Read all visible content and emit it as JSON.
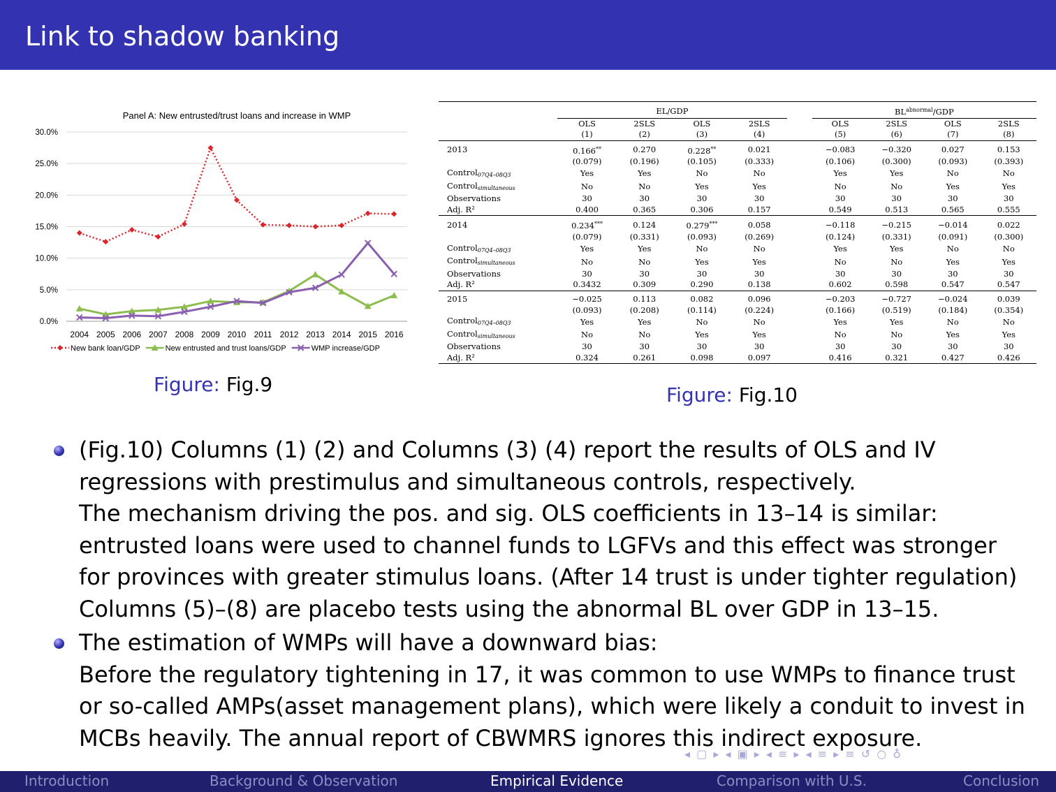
{
  "slide": {
    "title": "Link to shadow banking",
    "fig9_caption_label": "Figure:",
    "fig9_caption_text": "Fig.9",
    "fig10_caption_label": "Figure:",
    "fig10_caption_text": "Fig.10"
  },
  "chart_data": {
    "type": "line",
    "title": "Panel A: New entrusted/trust loans and increase in WMP",
    "categories": [
      "2004",
      "2005",
      "2006",
      "2007",
      "2008",
      "2009",
      "2010",
      "2011",
      "2012",
      "2013",
      "2014",
      "2015",
      "2016"
    ],
    "yticks": [
      "0.0%",
      "5.0%",
      "10.0%",
      "15.0%",
      "20.0%",
      "25.0%",
      "30.0%"
    ],
    "ylim": [
      0,
      30
    ],
    "grid": true,
    "legend_position": "bottom",
    "series": [
      {
        "name": "New bank loan/GDP",
        "color": "#d9262c",
        "style": "dotted",
        "marker": "diamond",
        "values": [
          14.0,
          12.6,
          14.5,
          13.4,
          15.4,
          27.5,
          19.2,
          15.3,
          15.2,
          15.0,
          15.2,
          17.1,
          17.0
        ]
      },
      {
        "name": "New entrusted and trust loans/GDP",
        "color": "#8dbd4f",
        "style": "solid",
        "marker": "triangle",
        "values": [
          2.0,
          1.1,
          1.6,
          1.8,
          2.3,
          3.2,
          3.0,
          3.0,
          4.8,
          7.4,
          4.7,
          2.4,
          4.1
        ]
      },
      {
        "name": "WMP increase/GDP",
        "color": "#8a5fb0",
        "style": "solid",
        "marker": "x",
        "values": [
          0.6,
          0.5,
          0.9,
          0.8,
          1.5,
          2.3,
          3.2,
          2.9,
          4.6,
          5.3,
          7.4,
          12.4,
          7.5
        ]
      }
    ]
  },
  "table": {
    "group1": "EL/GDP",
    "group2_pre": "BL",
    "group2_sup": "abnormal",
    "group2_post": "/GDP",
    "methods": [
      "OLS",
      "2SLS",
      "OLS",
      "2SLS",
      "OLS",
      "2SLS",
      "OLS",
      "2SLS"
    ],
    "colnums": [
      "(1)",
      "(2)",
      "(3)",
      "(4)",
      "(5)",
      "(6)",
      "(7)",
      "(8)"
    ],
    "row_labels": {
      "control1": "Control",
      "control1_sub": "07Q4–08Q3",
      "control2": "Control",
      "control2_sub": "simultaneous",
      "obs": "Observations",
      "adj": "Adj. R²"
    },
    "years": [
      {
        "year": "2013",
        "coef": [
          "0.166**",
          "0.270",
          "0.228**",
          "0.021",
          "−0.083",
          "−0.320",
          "0.027",
          "0.153"
        ],
        "se": [
          "(0.079)",
          "(0.196)",
          "(0.105)",
          "(0.333)",
          "(0.106)",
          "(0.300)",
          "(0.093)",
          "(0.393)"
        ],
        "c1": [
          "Yes",
          "Yes",
          "No",
          "No",
          "Yes",
          "Yes",
          "No",
          "No"
        ],
        "c2": [
          "No",
          "No",
          "Yes",
          "Yes",
          "No",
          "No",
          "Yes",
          "Yes"
        ],
        "obs": [
          "30",
          "30",
          "30",
          "30",
          "30",
          "30",
          "30",
          "30"
        ],
        "adj": [
          "0.400",
          "0.365",
          "0.306",
          "0.157",
          "0.549",
          "0.513",
          "0.565",
          "0.555"
        ]
      },
      {
        "year": "2014",
        "coef": [
          "0.234***",
          "0.124",
          "0.279***",
          "0.058",
          "−0.118",
          "−0.215",
          "−0.014",
          "0.022"
        ],
        "se": [
          "(0.079)",
          "(0.331)",
          "(0.093)",
          "(0.269)",
          "(0.124)",
          "(0.331)",
          "(0.091)",
          "(0.300)"
        ],
        "c1": [
          "Yes",
          "Yes",
          "No",
          "No",
          "Yes",
          "Yes",
          "No",
          "No"
        ],
        "c2": [
          "No",
          "No",
          "Yes",
          "Yes",
          "No",
          "No",
          "Yes",
          "Yes"
        ],
        "obs": [
          "30",
          "30",
          "30",
          "30",
          "30",
          "30",
          "30",
          "30"
        ],
        "adj": [
          "0.3432",
          "0.309",
          "0.290",
          "0.138",
          "0.602",
          "0.598",
          "0.547",
          "0.547"
        ]
      },
      {
        "year": "2015",
        "coef": [
          "−0.025",
          "0.113",
          "0.082",
          "0.096",
          "−0.203",
          "−0.727",
          "−0.024",
          "0.039"
        ],
        "se": [
          "(0.093)",
          "(0.208)",
          "(0.114)",
          "(0.224)",
          "(0.166)",
          "(0.519)",
          "(0.184)",
          "(0.354)"
        ],
        "c1": [
          "Yes",
          "Yes",
          "No",
          "No",
          "Yes",
          "Yes",
          "No",
          "No"
        ],
        "c2": [
          "No",
          "No",
          "Yes",
          "Yes",
          "No",
          "No",
          "Yes",
          "Yes"
        ],
        "obs": [
          "30",
          "30",
          "30",
          "30",
          "30",
          "30",
          "30",
          "30"
        ],
        "adj": [
          "0.324",
          "0.261",
          "0.098",
          "0.097",
          "0.416",
          "0.321",
          "0.427",
          "0.426"
        ]
      }
    ]
  },
  "bullets": [
    {
      "lines": [
        "(Fig.10) Columns (1) (2) and Columns (3) (4) report the results of OLS and IV regressions with prestimulus and simultaneous controls, respectively.",
        "The mechanism driving the pos. and sig. OLS coefficients in 13–14 is similar: entrusted loans were used to channel funds to LGFVs and this effect was stronger for provinces with greater stimulus loans. (After 14 trust is under tighter regulation)",
        "Columns (5)–(8) are placebo tests using the abnormal BL over GDP in 13–15."
      ]
    },
    {
      "lines": [
        "The estimation of WMPs will have a downward bias:",
        "Before the regulatory tightening in 17, it was common to use WMPs to finance trust or so-called AMPs(asset management plans), which were likely a conduit to invest in MCBs heavily. The annual report of CBWMRS ignores this indirect exposure."
      ]
    }
  ],
  "nav": {
    "sections": [
      "Introduction",
      "Background & Observation",
      "Empirical Evidence",
      "Comparison with U.S.",
      "Conclusion"
    ],
    "active": "Empirical Evidence"
  }
}
